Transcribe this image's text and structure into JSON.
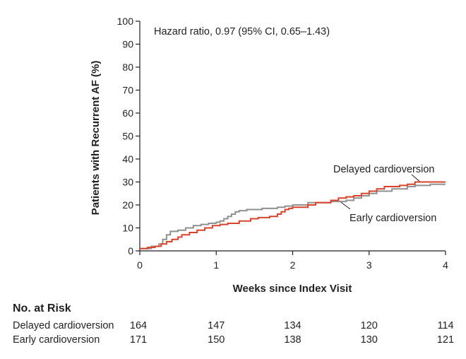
{
  "chart_data": {
    "type": "line",
    "subtype": "kaplan-meier step",
    "annotation": "Hazard ratio, 0.97 (95% CI, 0.65–1.43)",
    "xlabel": "Weeks since Index Visit",
    "ylabel": "Patients with Recurrent AF (%)",
    "xlim": [
      0,
      4
    ],
    "ylim": [
      0,
      100
    ],
    "xticks": [
      0,
      1,
      2,
      3,
      4
    ],
    "yticks": [
      0,
      10,
      20,
      30,
      40,
      50,
      60,
      70,
      80,
      90,
      100
    ],
    "series": [
      {
        "name": "Delayed cardioversion",
        "color": "#d9432a",
        "x": [
          0,
          0.1,
          0.2,
          0.28,
          0.35,
          0.42,
          0.5,
          0.55,
          0.65,
          0.75,
          0.85,
          0.95,
          1.05,
          1.15,
          1.3,
          1.45,
          1.55,
          1.7,
          1.8,
          1.85,
          1.9,
          1.95,
          2.0,
          2.2,
          2.3,
          2.5,
          2.6,
          2.7,
          2.8,
          2.9,
          3.0,
          3.1,
          3.2,
          3.4,
          3.5,
          3.6,
          4.0
        ],
        "y": [
          1,
          1.5,
          2,
          3,
          4,
          5,
          6,
          7,
          8,
          9,
          10,
          11,
          11.5,
          12,
          13,
          14,
          14.5,
          15,
          16,
          17,
          18,
          18.5,
          19,
          20,
          21,
          22,
          23,
          23.5,
          24,
          25,
          26,
          27,
          28,
          28.5,
          29,
          30,
          30
        ]
      },
      {
        "name": "Early cardioversion",
        "color": "#909090",
        "x": [
          0,
          0.15,
          0.25,
          0.3,
          0.35,
          0.4,
          0.5,
          0.6,
          0.7,
          0.8,
          0.9,
          1.0,
          1.05,
          1.1,
          1.15,
          1.2,
          1.25,
          1.3,
          1.4,
          1.6,
          1.8,
          1.9,
          2.0,
          2.2,
          2.5,
          2.7,
          2.8,
          2.9,
          3.0,
          3.1,
          3.3,
          3.5,
          3.6,
          3.8,
          4.0
        ],
        "y": [
          1,
          2,
          3,
          5,
          7,
          8.5,
          9,
          10,
          11,
          11.5,
          12,
          12.5,
          13,
          14,
          15,
          16,
          17,
          17.5,
          18,
          18.5,
          19,
          19.5,
          20,
          21,
          21.5,
          22,
          23,
          24,
          25,
          26,
          27,
          28,
          28.5,
          29,
          29
        ]
      }
    ],
    "at_risk": {
      "title": "No. at Risk",
      "x": [
        0,
        1,
        2,
        3,
        4
      ],
      "rows": [
        {
          "label": "Delayed cardioversion",
          "values": [
            "164",
            "147",
            "134",
            "120",
            "114"
          ]
        },
        {
          "label": "Early cardioversion",
          "values": [
            "171",
            "150",
            "138",
            "130",
            "121"
          ]
        }
      ]
    }
  }
}
